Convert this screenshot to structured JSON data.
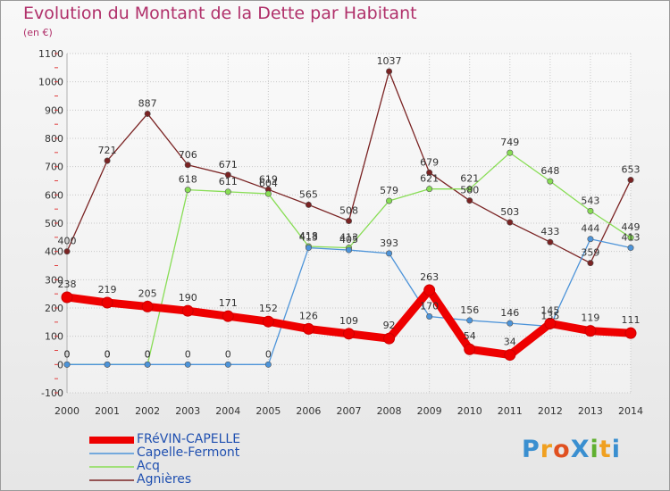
{
  "title": "Evolution du Montant de la Dette par Habitant",
  "subtitle": "(en €)",
  "logo": {
    "text": "ProXiti",
    "colors": [
      "#3a8fd0",
      "#f0a020",
      "#e05020",
      "#3a8fd0",
      "#60b030",
      "#f0a020",
      "#3a8fd0"
    ]
  },
  "chart_data": {
    "type": "line",
    "x": [
      2000,
      2001,
      2002,
      2003,
      2004,
      2005,
      2006,
      2007,
      2008,
      2009,
      2010,
      2011,
      2012,
      2013,
      2014
    ],
    "ylim": [
      -100,
      1100
    ],
    "yticks": [
      -100,
      0,
      100,
      200,
      300,
      400,
      500,
      600,
      700,
      800,
      900,
      1000,
      1100
    ],
    "grid": true,
    "legend_position": "bottom-left",
    "series": [
      {
        "name": "FRéVIN-CAPELLE",
        "color": "#ee0000",
        "values": [
          238,
          219,
          205,
          190,
          171,
          152,
          126,
          109,
          92,
          263,
          54,
          34,
          145,
          119,
          111
        ],
        "labels": [
          "238",
          "219",
          "205",
          "190",
          "171",
          "152",
          "126",
          "109",
          "92",
          "263",
          "54",
          "34",
          "145",
          "119",
          "111"
        ]
      },
      {
        "name": "Capelle-Fermont",
        "color": "#4d94d9",
        "values": [
          0,
          0,
          0,
          0,
          0,
          0,
          413,
          405,
          393,
          170,
          156,
          146,
          135,
          444,
          413
        ],
        "labels": [
          "0",
          "0",
          "0",
          "0",
          "0",
          "0",
          "413",
          "405",
          "393",
          "170",
          "156",
          "146",
          "135",
          "444",
          "413"
        ]
      },
      {
        "name": "Acq",
        "color": "#88dd55",
        "values": [
          0,
          0,
          0,
          618,
          611,
          604,
          418,
          413,
          579,
          621,
          621,
          749,
          648,
          543,
          449
        ],
        "labels": [
          "0",
          "0",
          "0",
          "618",
          "611",
          "604",
          "418",
          "413",
          "579",
          "621",
          "621",
          "749",
          "648",
          "543",
          "449"
        ]
      },
      {
        "name": "Agnières",
        "color": "#7a2323",
        "values": [
          400,
          721,
          887,
          706,
          671,
          619,
          565,
          508,
          1037,
          679,
          580,
          503,
          433,
          359,
          653
        ],
        "labels": [
          "400",
          "721",
          "887",
          "706",
          "671",
          "619",
          "565",
          "508",
          "1037",
          "679",
          "580",
          "503",
          "433",
          "359",
          "653"
        ]
      }
    ]
  }
}
